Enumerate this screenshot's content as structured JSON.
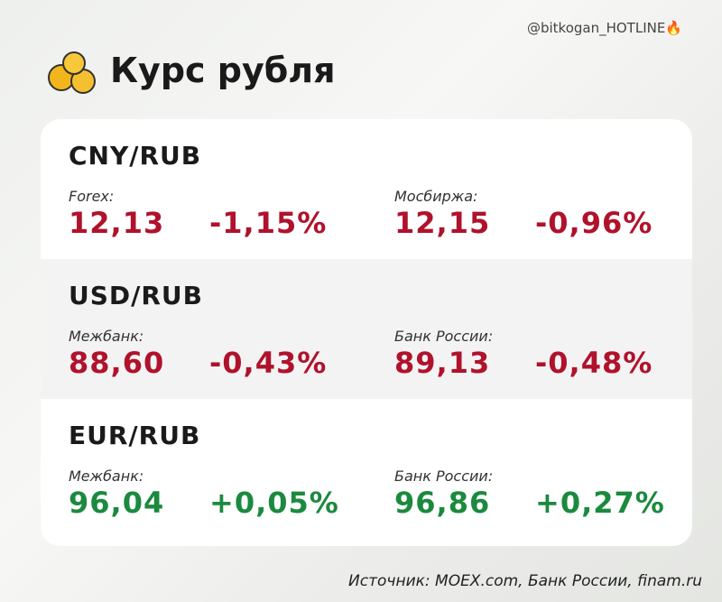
{
  "header": {
    "handle": "@bitkogan_HOTLINE🔥",
    "title": "Курс рубля"
  },
  "sections": [
    {
      "pair": "CNY/RUB",
      "color": "#b0122c",
      "quotes": [
        {
          "label": "Forex:",
          "rate": "12,13",
          "change": "-1,15%"
        },
        {
          "label": "Мосбиржа:",
          "rate": "12,15",
          "change": "-0,96%"
        }
      ]
    },
    {
      "pair": "USD/RUB",
      "color": "#b0122c",
      "quotes": [
        {
          "label": "Межбанк:",
          "rate": "88,60",
          "change": "-0,43%"
        },
        {
          "label": "Банк России:",
          "rate": "89,13",
          "change": "-0,48%"
        }
      ]
    },
    {
      "pair": "EUR/RUB",
      "color": "#1b8a3e",
      "quotes": [
        {
          "label": "Межбанк:",
          "rate": "96,04",
          "change": "+0,05%"
        },
        {
          "label": "Банк России:",
          "rate": "96,86",
          "change": "+0,27%"
        }
      ]
    }
  ],
  "footer": {
    "source": "Источник: MOEX.com, Банк России, finam.ru"
  }
}
